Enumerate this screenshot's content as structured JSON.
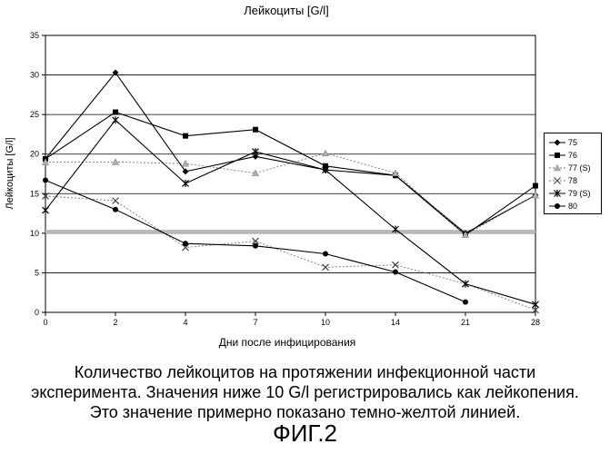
{
  "chart_data": {
    "type": "line",
    "title": "Лейкоциты [G/l]",
    "xlabel": "Дни после инфицирования",
    "ylabel": "Лейкоциты [G/l]",
    "categories": [
      "0",
      "2",
      "4",
      "7",
      "10",
      "14",
      "21",
      "28"
    ],
    "ylim": [
      0,
      35
    ],
    "yticks": [
      0,
      5,
      10,
      15,
      20,
      25,
      30,
      35
    ],
    "grid": true,
    "legend_position": "right",
    "reference_line": {
      "value": 10.2,
      "color": "#b8b8b8"
    },
    "series": [
      {
        "name": "75",
        "marker": "diamond",
        "dash": "solid",
        "values": [
          19.4,
          30.3,
          17.8,
          19.7,
          18.0,
          17.3,
          10.0,
          14.8
        ]
      },
      {
        "name": "76",
        "marker": "square",
        "dash": "solid",
        "values": [
          19.4,
          25.3,
          22.3,
          23.1,
          18.5,
          17.3,
          9.8,
          16.0
        ]
      },
      {
        "name": "77 (S)",
        "marker": "triangle",
        "dash": "dotted",
        "values": [
          19.0,
          19.0,
          18.8,
          17.6,
          20.1,
          17.6,
          9.8,
          14.8
        ]
      },
      {
        "name": "78",
        "marker": "x",
        "dash": "dotted",
        "values": [
          14.7,
          14.1,
          8.2,
          9.0,
          5.7,
          6.0,
          3.6,
          0.3
        ]
      },
      {
        "name": "79 (S)",
        "marker": "star",
        "dash": "solid",
        "values": [
          12.9,
          24.3,
          16.3,
          20.3,
          18.0,
          10.5,
          3.6,
          1.0
        ]
      },
      {
        "name": "80",
        "marker": "circle",
        "dash": "solid",
        "values": [
          16.7,
          13.0,
          8.7,
          8.4,
          7.4,
          5.1,
          1.3,
          null
        ]
      }
    ]
  },
  "caption": {
    "line1": "Количество лейкоцитов на протяжении инфекционной части",
    "line2": "эксперимента. Значения ниже 10 G/l регистрировались как лейкопения.",
    "line3": "Это значение примерно показано темно-желтой линией."
  },
  "figure_label": "ФИГ.2"
}
